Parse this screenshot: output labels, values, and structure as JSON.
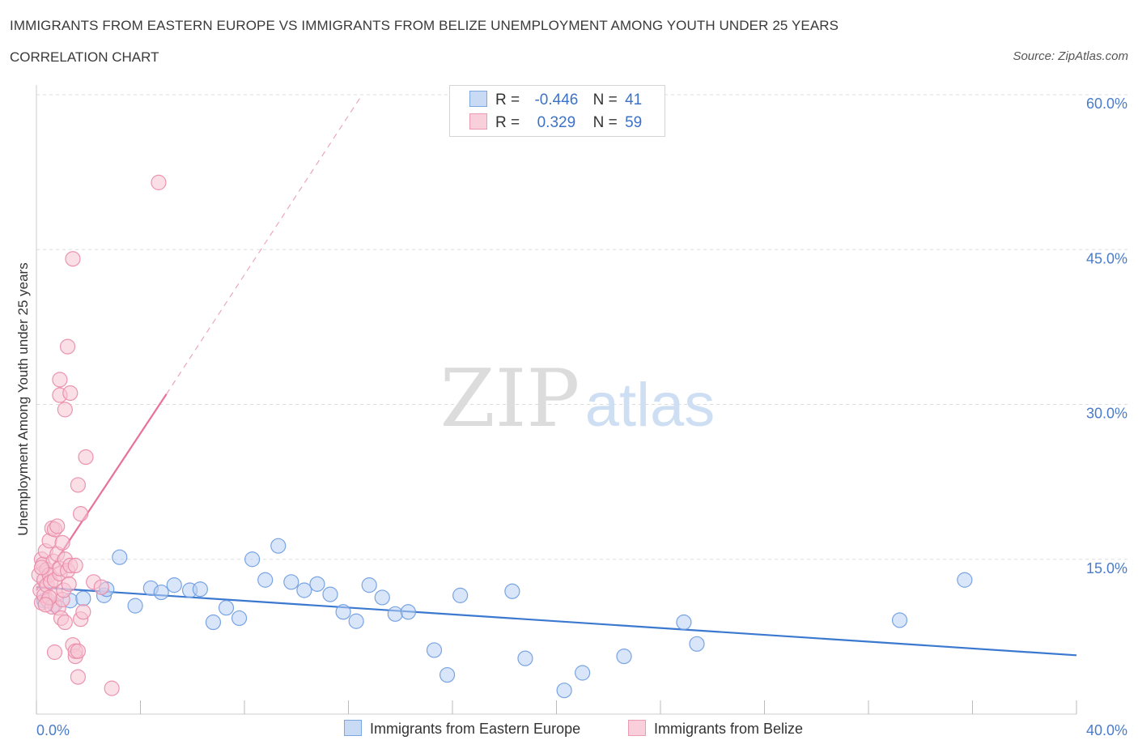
{
  "header": {
    "title": "IMMIGRANTS FROM EASTERN EUROPE VS IMMIGRANTS FROM BELIZE UNEMPLOYMENT AMONG YOUTH UNDER 25 YEARS",
    "subtitle": "CORRELATION CHART",
    "source": "Source: ZipAtlas.com"
  },
  "watermark": {
    "zip": "ZIP",
    "atlas": "atlas"
  },
  "legend": {
    "rows": [
      {
        "r_label": "R =",
        "r_value": "-0.446",
        "n_label": "N =",
        "n_value": "41"
      },
      {
        "r_label": "R =",
        "r_value": "0.329",
        "n_label": "N =",
        "n_value": "59"
      }
    ]
  },
  "chart_data": {
    "type": "scatter",
    "title": "IMMIGRANTS FROM EASTERN EUROPE VS IMMIGRANTS FROM BELIZE UNEMPLOYMENT AMONG YOUTH UNDER 25 YEARS",
    "xlabel": "",
    "ylabel": "Unemployment Among Youth under 25 years",
    "xlim": [
      0,
      40
    ],
    "ylim": [
      0,
      60
    ],
    "x_tick_labels": [
      "0.0%",
      "40.0%"
    ],
    "y_ticks": [
      15,
      30,
      45,
      60
    ],
    "y_tick_labels": [
      "15.0%",
      "30.0%",
      "45.0%",
      "60.0%"
    ],
    "grid": true,
    "series": [
      {
        "name": "Immigrants from Eastern Europe",
        "color": "#6b9be0",
        "fill": "#b9d0f3",
        "R": -0.446,
        "N": 41,
        "trend": {
          "x0": 0,
          "y0": 12.3,
          "x1": 40,
          "y1": 5.7
        },
        "points": [
          [
            0.3,
            11.0
          ],
          [
            0.7,
            10.6
          ],
          [
            1.3,
            11.0
          ],
          [
            2.6,
            11.5
          ],
          [
            3.2,
            15.2
          ],
          [
            3.8,
            10.5
          ],
          [
            4.4,
            12.2
          ],
          [
            4.8,
            11.8
          ],
          [
            5.3,
            12.5
          ],
          [
            5.9,
            12.0
          ],
          [
            6.3,
            12.1
          ],
          [
            6.8,
            8.9
          ],
          [
            7.3,
            10.3
          ],
          [
            7.8,
            9.3
          ],
          [
            8.3,
            15.0
          ],
          [
            8.8,
            13.0
          ],
          [
            9.3,
            16.3
          ],
          [
            9.8,
            12.8
          ],
          [
            10.3,
            12.0
          ],
          [
            10.8,
            12.6
          ],
          [
            11.3,
            11.6
          ],
          [
            11.8,
            9.9
          ],
          [
            12.3,
            9.0
          ],
          [
            12.8,
            12.5
          ],
          [
            13.3,
            11.3
          ],
          [
            13.8,
            9.7
          ],
          [
            14.3,
            9.9
          ],
          [
            15.3,
            6.2
          ],
          [
            15.8,
            3.8
          ],
          [
            16.3,
            11.5
          ],
          [
            18.3,
            11.9
          ],
          [
            18.8,
            5.4
          ],
          [
            20.3,
            2.3
          ],
          [
            21.0,
            4.0
          ],
          [
            22.6,
            5.6
          ],
          [
            24.9,
            8.9
          ],
          [
            25.4,
            6.8
          ],
          [
            33.2,
            9.1
          ],
          [
            35.7,
            13.0
          ],
          [
            1.8,
            11.2
          ],
          [
            2.7,
            12.1
          ]
        ]
      },
      {
        "name": "Immigrants from Belize",
        "color": "#e98aa8",
        "fill": "#f6c4d3",
        "R": 0.329,
        "N": 59,
        "trend": {
          "x0": 0,
          "y0": 12.0,
          "x1": 5.0,
          "y1": 31.0,
          "dashed_to": {
            "x": 12.5,
            "y": 59.9
          }
        },
        "points": [
          [
            0.1,
            13.5
          ],
          [
            0.15,
            12.0
          ],
          [
            0.2,
            15.0
          ],
          [
            0.2,
            10.8
          ],
          [
            0.25,
            14.5
          ],
          [
            0.3,
            13.0
          ],
          [
            0.3,
            11.5
          ],
          [
            0.35,
            15.8
          ],
          [
            0.4,
            12.5
          ],
          [
            0.4,
            14.0
          ],
          [
            0.45,
            11.0
          ],
          [
            0.5,
            13.5
          ],
          [
            0.5,
            16.8
          ],
          [
            0.55,
            12.8
          ],
          [
            0.6,
            18.0
          ],
          [
            0.6,
            10.4
          ],
          [
            0.65,
            14.8
          ],
          [
            0.7,
            17.9
          ],
          [
            0.7,
            13.0
          ],
          [
            0.75,
            11.6
          ],
          [
            0.8,
            18.2
          ],
          [
            0.8,
            15.5
          ],
          [
            0.85,
            10.3
          ],
          [
            0.9,
            13.6
          ],
          [
            0.9,
            14.1
          ],
          [
            0.95,
            9.3
          ],
          [
            1.0,
            11.1
          ],
          [
            1.0,
            16.6
          ],
          [
            1.05,
            12.0
          ],
          [
            1.1,
            8.9
          ],
          [
            1.1,
            15.0
          ],
          [
            1.2,
            13.9
          ],
          [
            1.25,
            12.6
          ],
          [
            1.3,
            14.4
          ],
          [
            1.4,
            6.7
          ],
          [
            1.5,
            14.4
          ],
          [
            1.5,
            5.6
          ],
          [
            1.5,
            6.1
          ],
          [
            1.6,
            6.1
          ],
          [
            1.6,
            22.2
          ],
          [
            1.7,
            19.4
          ],
          [
            1.7,
            9.2
          ],
          [
            1.8,
            9.9
          ],
          [
            1.9,
            24.9
          ],
          [
            2.2,
            12.8
          ],
          [
            2.5,
            12.3
          ],
          [
            2.9,
            2.5
          ],
          [
            1.1,
            29.5
          ],
          [
            0.9,
            30.9
          ],
          [
            1.3,
            31.1
          ],
          [
            0.9,
            32.4
          ],
          [
            1.2,
            35.6
          ],
          [
            1.4,
            44.1
          ],
          [
            4.7,
            51.5
          ],
          [
            0.7,
            6.0
          ],
          [
            0.5,
            11.3
          ],
          [
            1.6,
            3.6
          ],
          [
            0.35,
            10.6
          ],
          [
            0.2,
            14.2
          ]
        ]
      }
    ]
  }
}
